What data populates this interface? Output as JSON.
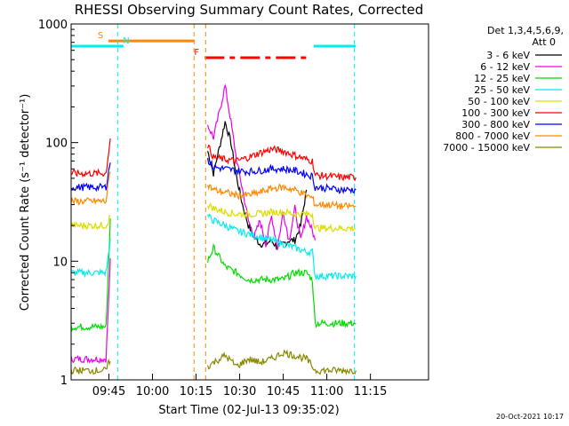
{
  "chart_data": {
    "type": "line",
    "title": "RHESSI Observing Summary Count Rates, Corrected",
    "xlabel": "Start Time (02-Jul-13 09:35:02)",
    "ylabel": "Corrected Count Rate (s⁻¹ detector⁻¹)",
    "yscale": "log",
    "xlim_min": [
      -3,
      120
    ],
    "ylim": [
      1,
      1000
    ],
    "x_ticks": [
      {
        "t": 10,
        "label": "09:45"
      },
      {
        "t": 25,
        "label": "10:00"
      },
      {
        "t": 40,
        "label": "10:15"
      },
      {
        "t": 55,
        "label": "10:30"
      },
      {
        "t": 70,
        "label": "10:45"
      },
      {
        "t": 85,
        "label": "11:00"
      },
      {
        "t": 100,
        "label": "11:15"
      }
    ],
    "y_ticks": [
      {
        "v": 1,
        "label": "1"
      },
      {
        "v": 10,
        "label": "10"
      },
      {
        "v": 100,
        "label": "100"
      },
      {
        "v": 1000,
        "label": "1000"
      }
    ],
    "legend_header": [
      "Det 1,3,4,5,6,9,",
      "Att 0"
    ],
    "series": [
      {
        "name": "3 - 6 keV",
        "color": "#000000",
        "x": [
          44,
          46,
          48,
          50,
          52,
          54,
          56,
          58,
          60,
          62,
          64,
          66,
          68,
          70,
          72,
          74,
          76,
          78
        ],
        "values": [
          85,
          55,
          90,
          150,
          100,
          50,
          30,
          20,
          16,
          14,
          14,
          15,
          13,
          14,
          15,
          15,
          20,
          40
        ]
      },
      {
        "name": "6 - 12 keV",
        "color": "#ee00ee",
        "x": [
          -3,
          9,
          10.5,
          44,
          46,
          48,
          50,
          52,
          54,
          56,
          58,
          60,
          62,
          64,
          66,
          68,
          70,
          72,
          74,
          76,
          78,
          80,
          81
        ],
        "values": [
          1.5,
          1.5,
          10,
          140,
          110,
          180,
          300,
          150,
          70,
          40,
          22,
          16,
          22,
          14,
          24,
          13,
          26,
          15,
          28,
          15,
          24,
          18,
          15
        ]
      },
      {
        "name": "12 - 25 keV",
        "color": "#00dd00",
        "x": [
          -3,
          9,
          10.5,
          44,
          46,
          50,
          54,
          58,
          62,
          66,
          70,
          74,
          78,
          80,
          81,
          86,
          90,
          95
        ],
        "values": [
          2.8,
          2.8,
          22,
          10,
          13,
          9,
          8,
          7,
          7,
          7,
          7,
          8,
          8,
          7,
          3,
          3,
          3,
          3
        ]
      },
      {
        "name": "25 - 50 keV",
        "color": "#00eeee",
        "x": [
          -3,
          9,
          10.5,
          44,
          46,
          50,
          54,
          58,
          62,
          66,
          70,
          74,
          78,
          80,
          81,
          86,
          90,
          95
        ],
        "values": [
          8,
          8,
          15,
          24,
          22,
          20,
          18,
          17,
          16,
          15,
          14,
          13,
          12,
          12,
          7.5,
          7.5,
          7.5,
          7.5
        ]
      },
      {
        "name": "50 - 100 keV",
        "color": "#dddd00",
        "x": [
          -3,
          9,
          10.5,
          44,
          46,
          50,
          54,
          58,
          62,
          66,
          70,
          74,
          78,
          80,
          81,
          86,
          90,
          95
        ],
        "values": [
          20,
          20,
          24,
          30,
          28,
          26,
          25,
          25,
          25,
          26,
          26,
          25,
          25,
          25,
          19,
          19,
          19,
          19
        ]
      },
      {
        "name": "100 - 300 keV",
        "color": "#ff0000",
        "x": [
          -3,
          9,
          10.5,
          44,
          46,
          50,
          54,
          58,
          62,
          66,
          70,
          74,
          78,
          80,
          81,
          86,
          90,
          95
        ],
        "values": [
          55,
          55,
          110,
          95,
          75,
          72,
          70,
          75,
          82,
          88,
          85,
          78,
          72,
          70,
          53,
          52,
          51,
          51
        ]
      },
      {
        "name": "300 - 800 keV",
        "color": "#0000ff",
        "x": [
          -3,
          9,
          10.5,
          44,
          46,
          50,
          54,
          58,
          62,
          66,
          70,
          74,
          78,
          80,
          81,
          86,
          90,
          95
        ],
        "values": [
          42,
          42,
          70,
          72,
          62,
          60,
          58,
          57,
          58,
          60,
          60,
          58,
          54,
          52,
          42,
          41,
          40,
          40
        ]
      },
      {
        "name": "800 - 7000 keV",
        "color": "#ff8800",
        "x": [
          -3,
          9,
          10.5,
          44,
          46,
          50,
          54,
          58,
          62,
          66,
          70,
          74,
          78,
          80,
          81,
          86,
          90,
          95
        ],
        "values": [
          32,
          32,
          60,
          44,
          40,
          38,
          36,
          36,
          38,
          41,
          42,
          40,
          36,
          34,
          30,
          30,
          29,
          29
        ]
      },
      {
        "name": "7000 - 15000 keV",
        "color": "#888800",
        "x": [
          -3,
          9,
          10.5,
          44,
          46,
          50,
          54,
          58,
          62,
          66,
          70,
          74,
          78,
          80,
          81,
          86,
          90,
          95
        ],
        "values": [
          1.2,
          1.2,
          1.5,
          1.3,
          1.4,
          1.6,
          1.3,
          1.5,
          1.4,
          1.5,
          1.7,
          1.6,
          1.5,
          1.3,
          1.2,
          1.2,
          1.2,
          1.2
        ]
      }
    ],
    "annotations": [
      {
        "type": "flag_bar",
        "label": "S",
        "color": "#ff8800",
        "x1": 9.8,
        "x2": 39.5,
        "y": 720
      },
      {
        "type": "flag_bar",
        "label": "F",
        "color": "#ff0000",
        "x1": 43,
        "x2": 78,
        "y": 520
      },
      {
        "type": "flag_bar",
        "label": "N",
        "color": "#00eeee",
        "x1": -3,
        "x2": 15,
        "y": 650
      },
      {
        "type": "flag_bar",
        "label": "",
        "color": "#00eeee",
        "x1": 80.5,
        "x2": 95,
        "y": 650
      },
      {
        "type": "vline",
        "color": "#00eeee",
        "x": 13
      },
      {
        "type": "vline",
        "color": "#00eeee",
        "x": 94.5
      },
      {
        "type": "vline",
        "color": "#ff8800",
        "x": 39.3
      },
      {
        "type": "vline",
        "color": "#ff8800",
        "x": 43.3
      }
    ],
    "footer": "20-Oct-2021 10:17",
    "grid": false
  }
}
